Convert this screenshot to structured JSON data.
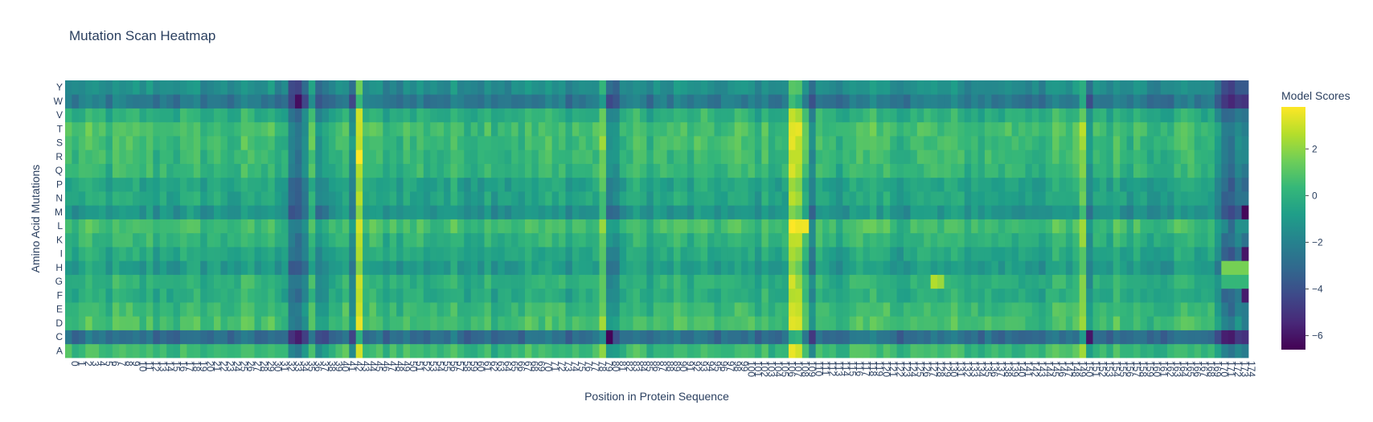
{
  "chart_data": {
    "type": "heatmap",
    "title": "Mutation Scan Heatmap",
    "xlabel": "Position in Protein Sequence",
    "ylabel": "Amino Acid Mutations",
    "x_range": [
      0,
      174
    ],
    "rows": [
      "A",
      "C",
      "D",
      "E",
      "F",
      "G",
      "H",
      "I",
      "K",
      "L",
      "M",
      "N",
      "P",
      "Q",
      "R",
      "S",
      "T",
      "V",
      "W",
      "Y"
    ],
    "colorbar": {
      "title": "Model Scores",
      "min": -6.6,
      "max": 3.8,
      "ticks": [
        2,
        0,
        -2,
        -4,
        -6
      ],
      "tick_labels": [
        "2",
        "0",
        "−2",
        "−4",
        "−6"
      ]
    },
    "colorscale": [
      "#440154",
      "#482878",
      "#3e4989",
      "#31688e",
      "#26828e",
      "#1f9e89",
      "#35b779",
      "#6ece58",
      "#b5de2b",
      "#fde725"
    ],
    "row_base": {
      "A": 0.4,
      "C": -2.8,
      "D": 0.6,
      "E": 0.4,
      "F": -0.2,
      "G": 0.0,
      "H": -0.9,
      "I": -0.4,
      "K": 0.1,
      "L": 0.6,
      "M": -1.2,
      "N": -0.5,
      "P": -0.6,
      "Q": 0.2,
      "R": 0.3,
      "S": 0.5,
      "T": 0.6,
      "V": -0.1,
      "W": -2.4,
      "Y": -1.5
    },
    "column_effects": [
      {
        "position": 33,
        "value": -2.2
      },
      {
        "position": 34,
        "value": -2.6
      },
      {
        "position": 35,
        "value": -1.8
      },
      {
        "position": 37,
        "value": -1.5
      },
      {
        "position": 38,
        "value": -1.4
      },
      {
        "position": 42,
        "value": -2.0
      },
      {
        "position": 43,
        "value": 3.0
      },
      {
        "position": 79,
        "value": 1.6
      },
      {
        "position": 80,
        "value": -1.6
      },
      {
        "position": 81,
        "value": -2.0
      },
      {
        "position": 107,
        "value": 2.6
      },
      {
        "position": 108,
        "value": 2.8
      },
      {
        "position": 110,
        "value": -1.5
      },
      {
        "position": 150,
        "value": 1.4
      },
      {
        "position": 151,
        "value": -1.2
      },
      {
        "position": 170,
        "value": -2.0
      },
      {
        "position": 171,
        "value": -2.4
      },
      {
        "position": 172,
        "value": -2.7
      },
      {
        "position": 173,
        "value": -2.5
      },
      {
        "position": 174,
        "value": -2.2
      }
    ],
    "cell_overrides": [
      {
        "row": "H",
        "position": 171,
        "value": 1.6
      },
      {
        "row": "H",
        "position": 172,
        "value": 1.6
      },
      {
        "row": "H",
        "position": 173,
        "value": 1.6
      },
      {
        "row": "H",
        "position": 174,
        "value": 1.6
      },
      {
        "row": "G",
        "position": 171,
        "value": 0.3
      },
      {
        "row": "G",
        "position": 172,
        "value": 0.3
      },
      {
        "row": "G",
        "position": 173,
        "value": 0.3
      },
      {
        "row": "G",
        "position": 174,
        "value": 0.3
      },
      {
        "row": "M",
        "position": 174,
        "value": -6.4
      },
      {
        "row": "I",
        "position": 174,
        "value": -6.0
      },
      {
        "row": "F",
        "position": 174,
        "value": -5.8
      },
      {
        "row": "W",
        "position": 34,
        "value": -6.2
      },
      {
        "row": "C",
        "position": 80,
        "value": -6.5
      },
      {
        "row": "C",
        "position": 151,
        "value": -6.0
      },
      {
        "row": "G",
        "position": 128,
        "value": 2.6
      },
      {
        "row": "G",
        "position": 129,
        "value": 2.2
      },
      {
        "row": "L",
        "position": 109,
        "value": 3.6
      },
      {
        "row": "R",
        "position": 43,
        "value": 3.8
      }
    ]
  }
}
